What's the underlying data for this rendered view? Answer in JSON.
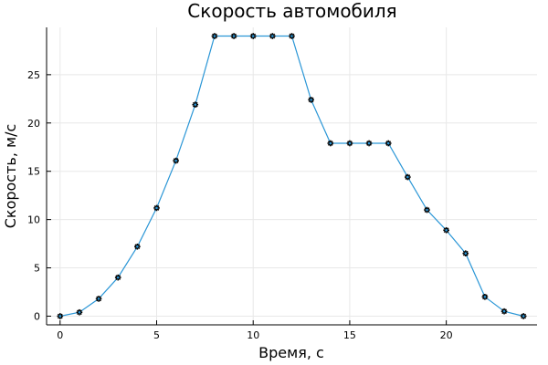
{
  "chart_data": {
    "type": "line",
    "title": "Скорость автомобиля",
    "xlabel": "Время, с",
    "ylabel": "Скорость, м/с",
    "xlim": [
      -0.7,
      24.7
    ],
    "ylim": [
      -0.9,
      29.9
    ],
    "xticks": [
      0,
      5,
      10,
      15,
      20
    ],
    "yticks": [
      0,
      5,
      10,
      15,
      20,
      25
    ],
    "grid": true,
    "legend": false,
    "line_color": "#2a96d6",
    "marker_color": "#000000",
    "marker": "star",
    "series": [
      {
        "x": [
          0,
          1,
          2,
          3,
          4,
          5,
          6,
          7,
          8,
          9,
          10,
          11,
          12,
          13,
          14,
          15,
          16,
          17,
          18,
          19,
          20,
          21,
          22,
          23,
          24
        ],
        "y": [
          0,
          0.4,
          1.8,
          4.0,
          7.2,
          11.2,
          16.1,
          21.9,
          29.0,
          29.0,
          29.0,
          29.0,
          29.0,
          22.4,
          17.9,
          17.9,
          17.9,
          17.9,
          14.4,
          11.0,
          8.9,
          6.5,
          2.0,
          0.5,
          0.0
        ]
      }
    ]
  }
}
